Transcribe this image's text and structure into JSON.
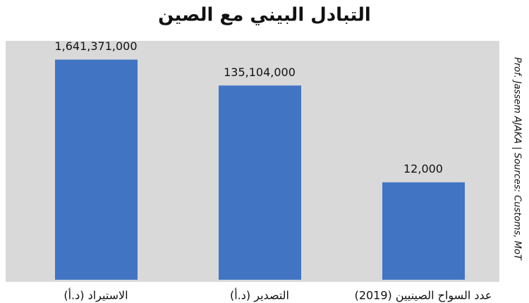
{
  "chart_data": {
    "type": "bar",
    "title": "التبادل البيني مع الصين",
    "source": "Prof. Jassem AJAKA | Sources: Customs, MoT",
    "categories": [
      "الاستيراد (د.أ)",
      "التصدير (د.أ)",
      "عدد السواح الصينيين (2019)"
    ],
    "values": [
      1641371000,
      135104000,
      12000
    ],
    "value_labels": [
      "1,641,371,000",
      "135,104,000",
      "12,000"
    ],
    "color": "#4175c4",
    "ylim": [
      1,
      10000000000
    ],
    "log_scale": true
  }
}
